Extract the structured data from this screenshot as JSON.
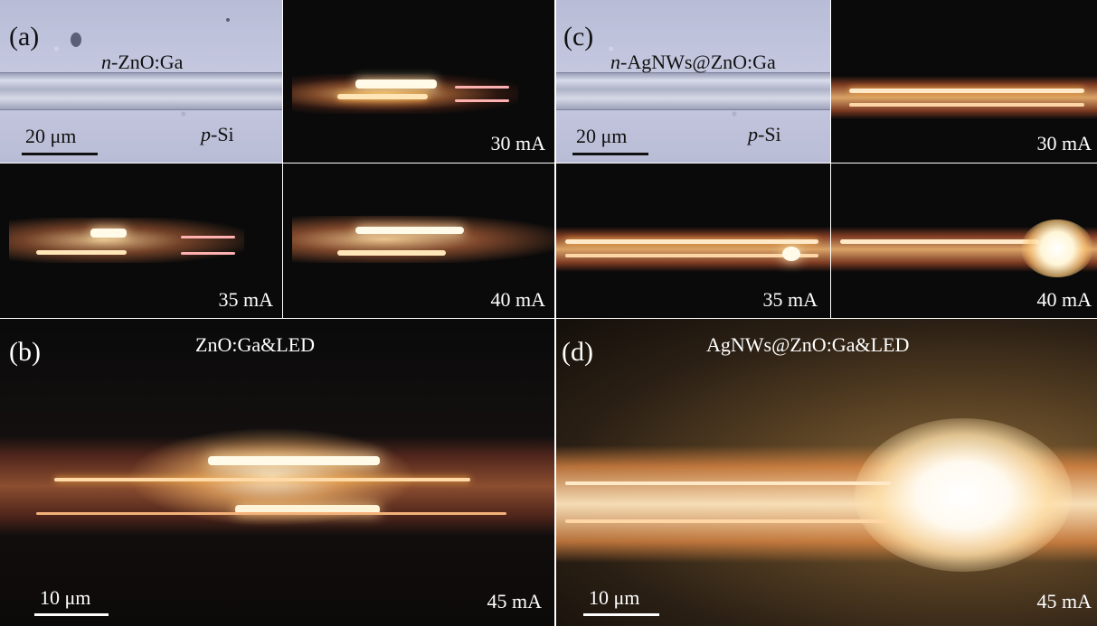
{
  "panels": {
    "a": {
      "letter": "(a)",
      "nanowire_label": "n-ZnO:Ga",
      "nanowire_prefix": "n",
      "nanowire_rest": "-ZnO:Ga",
      "substrate_label": "p-Si",
      "substrate_prefix": "p",
      "substrate_rest": "-Si",
      "scalebar": "20 μm",
      "currents": [
        "30 mA",
        "35 mA",
        "40 mA"
      ]
    },
    "b": {
      "letter": "(b)",
      "title": "ZnO:Ga&LED",
      "scalebar": "10 μm",
      "current": "45 mA"
    },
    "c": {
      "letter": "(c)",
      "nanowire_label": "n-AgNWs@ZnO:Ga",
      "nanowire_prefix": "n",
      "nanowire_rest": "-AgNWs@ZnO:Ga",
      "substrate_label": "p-Si",
      "substrate_prefix": "p",
      "substrate_rest": "-Si",
      "scalebar": "20 μm",
      "currents": [
        "30 mA",
        "35 mA",
        "40 mA"
      ]
    },
    "d": {
      "letter": "(d)",
      "title": "AgNWs@ZnO:Ga&LED",
      "scalebar": "10 μm",
      "current": "45 mA"
    }
  },
  "colors": {
    "glow_core": "#fffbe8",
    "glow_warm": "#ffb347",
    "glow_edge": "#c0582a",
    "background": "#0a0a0a",
    "optical_bg": "#c3c6de"
  }
}
